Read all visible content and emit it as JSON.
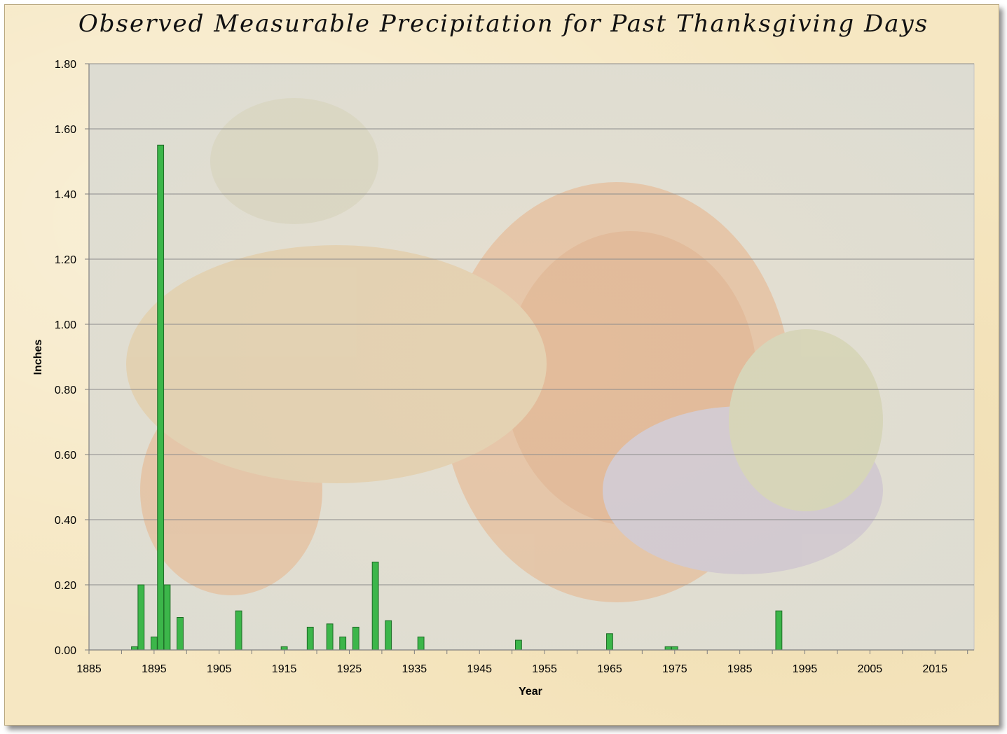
{
  "chart_data": {
    "type": "bar",
    "title": "Observed Measurable Precipitation for Past Thanksgiving Days",
    "xlabel": "Year",
    "ylabel": "Inches",
    "xlim": [
      1885,
      2021
    ],
    "ylim": [
      0,
      1.8
    ],
    "x_ticks": [
      1885,
      1895,
      1905,
      1915,
      1925,
      1935,
      1945,
      1955,
      1965,
      1975,
      1985,
      1995,
      2005,
      2015
    ],
    "y_ticks": [
      "0.00",
      "0.20",
      "0.40",
      "0.60",
      "0.80",
      "1.00",
      "1.20",
      "1.40",
      "1.60",
      "1.80"
    ],
    "grid": "horizontal",
    "legend": "none",
    "bar_color": "#3cb64a",
    "bar_edge_color": "#1e6b26",
    "series": [
      {
        "x": [
          1892,
          1893,
          1895,
          1896,
          1897,
          1899,
          1908,
          1915,
          1919,
          1922,
          1924,
          1926,
          1929,
          1931,
          1936,
          1951,
          1965,
          1974,
          1975,
          1991
        ],
        "values": [
          0.01,
          0.2,
          0.04,
          1.55,
          0.2,
          0.1,
          0.12,
          0.01,
          0.07,
          0.08,
          0.04,
          0.07,
          0.27,
          0.09,
          0.04,
          0.03,
          0.05,
          0.01,
          0.01,
          0.12
        ]
      }
    ]
  }
}
